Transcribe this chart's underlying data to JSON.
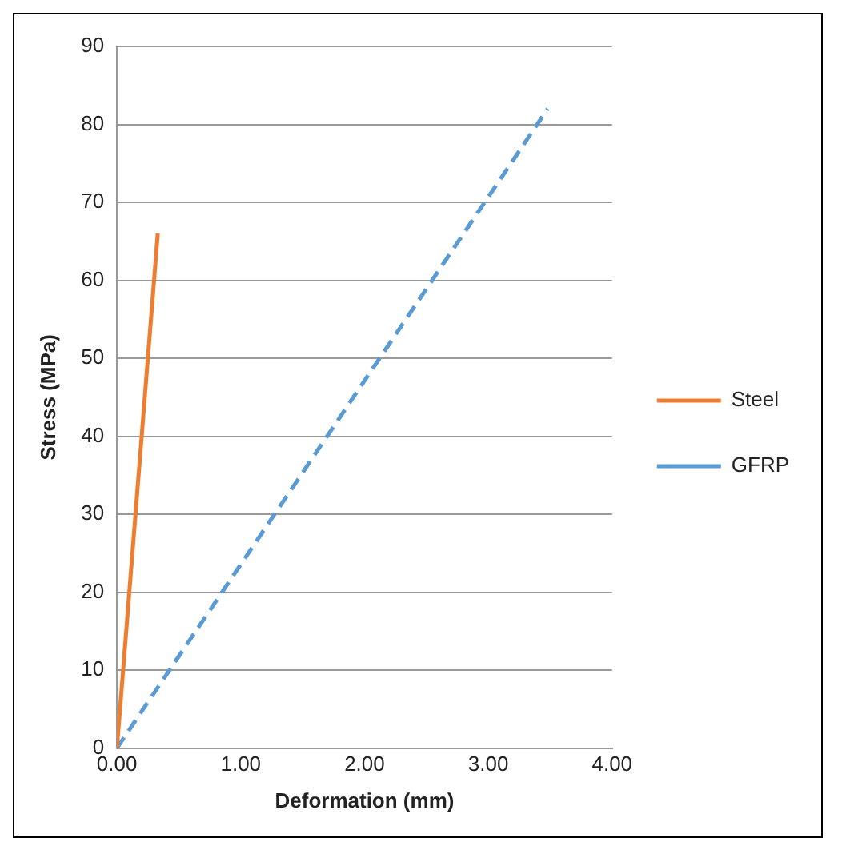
{
  "chart_data": {
    "type": "line",
    "xlabel": "Deformation (mm)",
    "ylabel": "Stress (MPa)",
    "xlim": [
      0,
      4
    ],
    "xticks": [
      {
        "value": 0,
        "label": "0.00"
      },
      {
        "value": 1,
        "label": "1.00"
      },
      {
        "value": 2,
        "label": "2.00"
      },
      {
        "value": 3,
        "label": "3.00"
      },
      {
        "value": 4,
        "label": "4.00"
      }
    ],
    "ylim": [
      0,
      90
    ],
    "yticks": [
      0,
      10,
      20,
      30,
      40,
      50,
      60,
      70,
      80,
      90
    ],
    "grid": "y",
    "legend": "right",
    "marker": "none",
    "series": [
      {
        "name": "Steel",
        "color": "#ed7d31",
        "x": [
          0,
          0.33
        ],
        "values": [
          0,
          66
        ],
        "line_style": "solid"
      },
      {
        "name": "GFRP",
        "color": "#5b9bd5",
        "x": [
          0,
          3.48
        ],
        "values": [
          0,
          82
        ],
        "line_style": "dashed"
      }
    ]
  }
}
